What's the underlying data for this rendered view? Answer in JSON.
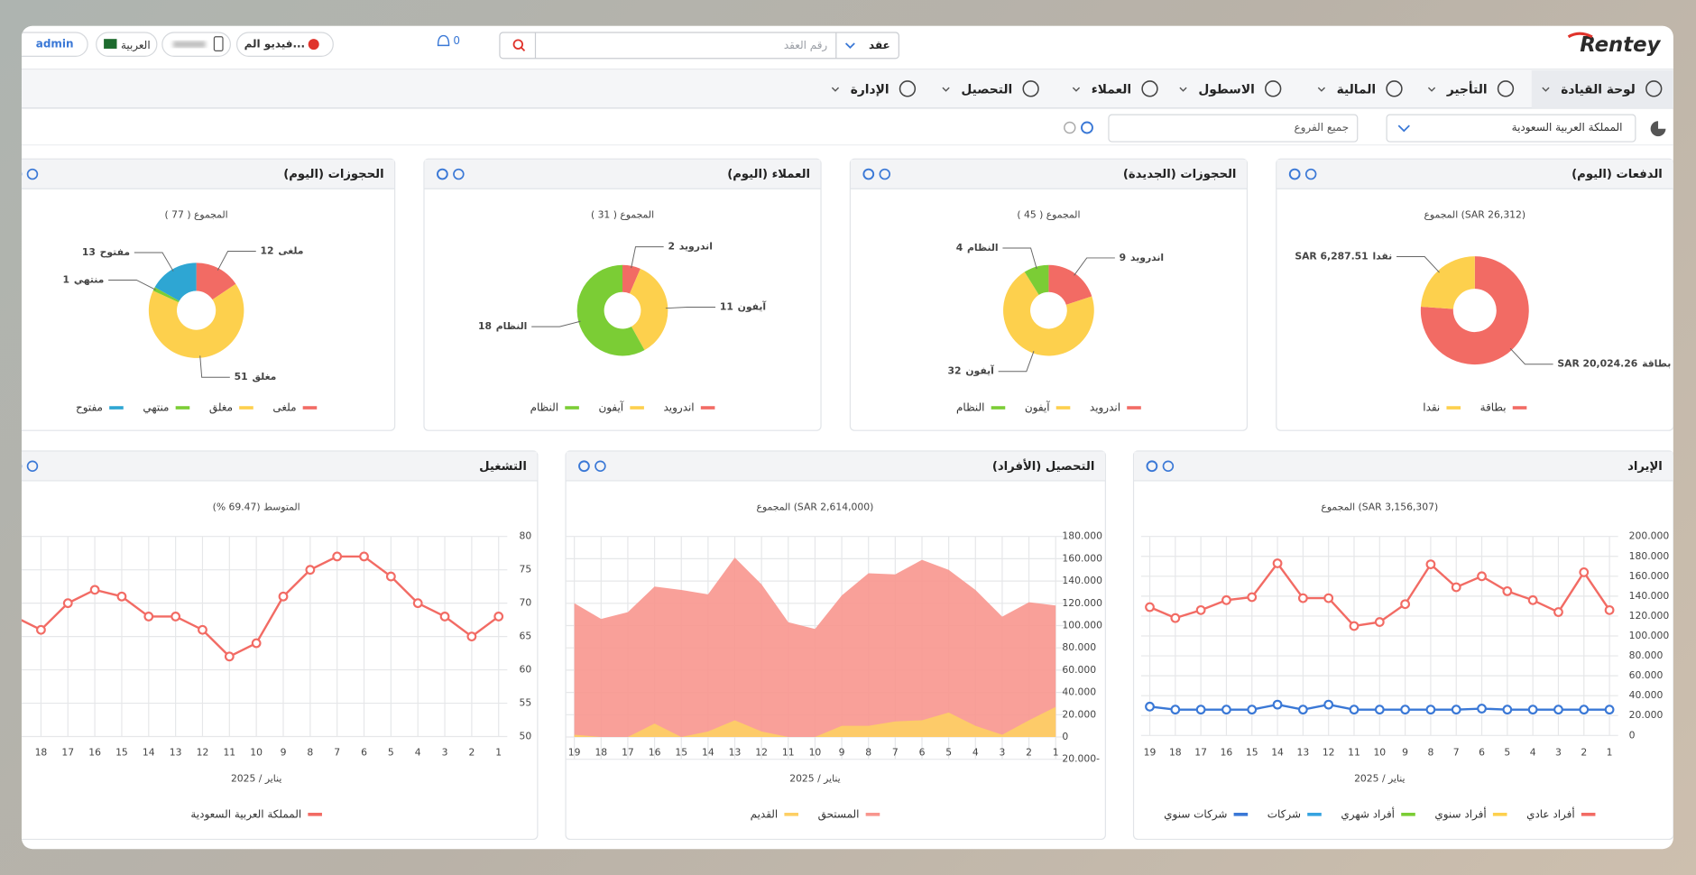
{
  "header": {
    "logo": "Rentey",
    "search_type": "عقد",
    "search_placeholder": "رقم العقد",
    "notifications": 0,
    "help": "فيديو الم...",
    "language": "العربية",
    "user": "admin"
  },
  "nav": [
    "لوحة القيادة",
    "التأجير",
    "المالية",
    "الاسطول",
    "العملاء",
    "التحصيل",
    "الإدارة"
  ],
  "filters": {
    "country": "المملكة العربية السعودية",
    "branch": "جميع الفروع"
  },
  "chart_data": [
    {
      "type": "pie",
      "title": "الدفعات (اليوم)",
      "subtitle": "المجموع (SAR 26,312)",
      "categories": [
        "بطاقة",
        "نقدا"
      ],
      "values": [
        20024.26,
        6287.51
      ],
      "value_labels": [
        "SAR 20,024.26",
        "SAR 6,287.51"
      ],
      "colors": [
        "#f26b64",
        "#fdd04d"
      ]
    },
    {
      "type": "pie",
      "title": "الحجوزات (الجديدة)",
      "subtitle": "المجموع ( 45 )",
      "categories": [
        "اندرويد",
        "آيفون",
        "النظام"
      ],
      "values": [
        9,
        32,
        4
      ],
      "colors": [
        "#f26b64",
        "#fdd04d",
        "#7bcd35"
      ]
    },
    {
      "type": "pie",
      "title": "العملاء (اليوم)",
      "subtitle": "المجموع ( 31 )",
      "categories": [
        "اندرويد",
        "آيفون",
        "النظام"
      ],
      "values": [
        2,
        11,
        18
      ],
      "colors": [
        "#f26b64",
        "#fdd04d",
        "#7bcd35"
      ]
    },
    {
      "type": "pie",
      "title": "الحجوزات (اليوم)",
      "subtitle": "المجموع ( 77 )",
      "categories": [
        "ملغى",
        "مغلق",
        "منتهي",
        "مفتوح"
      ],
      "values": [
        12,
        51,
        1,
        13
      ],
      "colors": [
        "#f26b64",
        "#fdd04d",
        "#7bcd35",
        "#2ea6d3"
      ]
    },
    {
      "type": "line",
      "title": "الإيراد",
      "subtitle": "المجموع (SAR 3,156,307)",
      "x_label": "يناير / 2025",
      "x": [
        1,
        2,
        3,
        4,
        5,
        6,
        7,
        8,
        9,
        10,
        11,
        12,
        13,
        14,
        15,
        16,
        17,
        18,
        19
      ],
      "xlim": [
        1,
        19
      ],
      "ylim": [
        0,
        200000
      ],
      "yticks": [
        0,
        {
          "value": 20000,
          "label": "20.000"
        },
        {
          "value": 40000,
          "label": "40.000"
        },
        {
          "value": 60000,
          "label": "60.000"
        },
        {
          "value": 80000,
          "label": "80.000"
        },
        {
          "value": 100000,
          "label": "100.000"
        },
        {
          "value": 120000,
          "label": "120.000"
        },
        {
          "value": 140000,
          "label": "140.000"
        },
        {
          "value": 160000,
          "label": "160.000"
        },
        {
          "value": 180000,
          "label": "180.000"
        },
        {
          "value": 200000,
          "label": "200.000"
        }
      ],
      "grid": true,
      "markers": true,
      "series": [
        {
          "name": "أفراد عادي",
          "color": "#f26b64",
          "values": [
            126000,
            164000,
            124000,
            136000,
            145000,
            160000,
            149000,
            172000,
            132000,
            114000,
            110000,
            138000,
            138000,
            173000,
            139000,
            136000,
            126000,
            118000,
            129000
          ]
        },
        {
          "name": "أفراد سنوي",
          "color": "#fdd04d",
          "values": [
            null,
            null,
            null,
            null,
            null,
            null,
            null,
            null,
            null,
            null,
            null,
            null,
            null,
            null,
            null,
            null,
            null,
            null,
            null
          ]
        },
        {
          "name": "أفراد شهري",
          "color": "#7bcd35",
          "values": [
            null,
            null,
            null,
            null,
            null,
            null,
            null,
            null,
            null,
            null,
            null,
            null,
            null,
            null,
            null,
            null,
            null,
            null,
            null
          ]
        },
        {
          "name": "شركات",
          "color": "#36a3e0",
          "values": [
            null,
            null,
            null,
            null,
            null,
            null,
            null,
            null,
            null,
            null,
            null,
            null,
            null,
            null,
            null,
            null,
            null,
            null,
            null
          ]
        },
        {
          "name": "شركات سنوي",
          "color": "#3a78d6",
          "values": [
            26000,
            26000,
            26000,
            26000,
            26000,
            27000,
            26000,
            26000,
            26000,
            26000,
            26000,
            31000,
            26000,
            31000,
            26000,
            26000,
            26000,
            26000,
            29000
          ]
        }
      ]
    },
    {
      "type": "area",
      "title": "التحصيل (الأفراد)",
      "subtitle": "المجموع (SAR 2,614,000)",
      "x_label": "يناير / 2025",
      "x": [
        1,
        2,
        3,
        4,
        5,
        6,
        7,
        8,
        9,
        10,
        11,
        12,
        13,
        14,
        15,
        16,
        17,
        18,
        19
      ],
      "xlim": [
        1,
        19
      ],
      "ylim": [
        -20000,
        180000
      ],
      "yticks": [
        {
          "value": -20000,
          "label": "20.000-"
        },
        0,
        {
          "value": 20000,
          "label": "20.000"
        },
        {
          "value": 40000,
          "label": "40.000"
        },
        {
          "value": 60000,
          "label": "60.000"
        },
        {
          "value": 80000,
          "label": "80.000"
        },
        {
          "value": 100000,
          "label": "100.000"
        },
        {
          "value": 120000,
          "label": "120.000"
        },
        {
          "value": 140000,
          "label": "140.000"
        },
        {
          "value": 160000,
          "label": "160.000"
        },
        {
          "value": 180000,
          "label": "180.000"
        }
      ],
      "grid": true,
      "markers": false,
      "series": [
        {
          "name": "المستحق",
          "color": "#f8968e",
          "values": [
            118000,
            121000,
            108000,
            132000,
            150000,
            159000,
            146000,
            147000,
            127000,
            97000,
            103000,
            137000,
            161000,
            128000,
            132000,
            135000,
            112000,
            106000,
            120000
          ]
        },
        {
          "name": "القديم",
          "color": "#fdcf64",
          "values": [
            27000,
            15000,
            2000,
            10000,
            22000,
            15000,
            14000,
            10000,
            10000,
            0,
            0,
            5000,
            15000,
            5000,
            0,
            12000,
            0,
            0,
            2000
          ]
        }
      ]
    },
    {
      "type": "line",
      "title": "التشغيل",
      "subtitle": "المتوسط (69.47 %)",
      "x_label": "يناير / 2025",
      "x": [
        1,
        2,
        3,
        4,
        5,
        6,
        7,
        8,
        9,
        10,
        11,
        12,
        13,
        14,
        15,
        16,
        17,
        18,
        19
      ],
      "xlim": [
        1,
        19
      ],
      "ylim": [
        50,
        80
      ],
      "yticks": [
        50,
        55,
        60,
        65,
        70,
        75,
        80
      ],
      "grid": true,
      "markers": true,
      "series": [
        {
          "name": "المملكة العربية السعودية",
          "color": "#f26b64",
          "values": [
            68,
            65,
            68,
            70,
            74,
            77,
            77,
            75,
            71,
            64,
            62,
            66,
            68,
            68,
            71,
            72,
            70,
            66,
            68
          ]
        }
      ]
    }
  ]
}
